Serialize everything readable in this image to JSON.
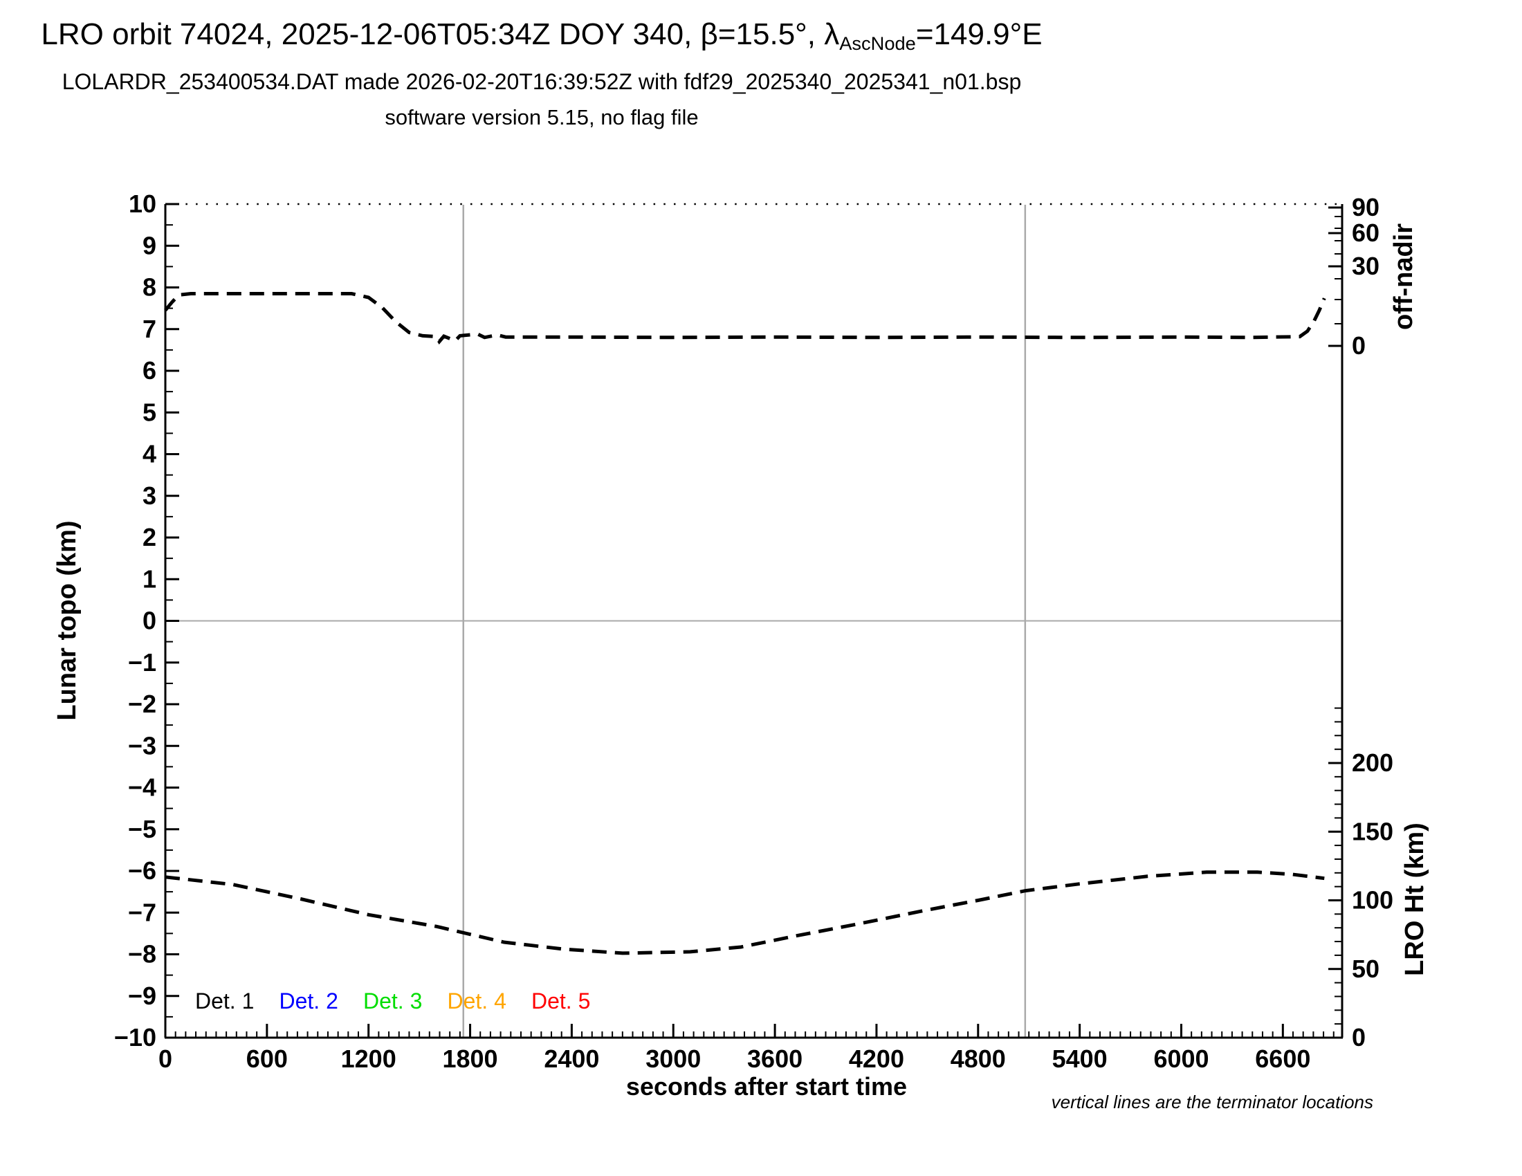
{
  "header": {
    "title_prefix": "LRO orbit 74024, 2025-12-06T05:34Z DOY 340, β=15.5°, λ",
    "title_lambda_subscript": "AscNode",
    "title_suffix": "=149.9°E",
    "subtitle": "LOLARDR_253400534.DAT made 2026-02-20T16:39:52Z with fdf29_2025340_2025341_n01.bsp",
    "version_line": "software version 5.15, no flag file"
  },
  "chart_data": {
    "type": "line",
    "title": "LRO orbit 74024, 2025-12-06T05:34Z DOY 340, β=15.5°, λAscNode=149.9°E",
    "xlabel": "seconds after start time",
    "ylabel_left": "Lunar topo (km)",
    "ylabel_right_top": "off-nadir",
    "ylabel_right_bottom": "LRO Ht (km)",
    "footnote": "vertical lines are the terminator locations",
    "xlim": [
      0,
      6950
    ],
    "ylim_left": [
      -10,
      10
    ],
    "x_major_step": 600,
    "x_minor_step": 60,
    "x_tick_labels": [
      "0",
      "600",
      "1200",
      "1800",
      "2400",
      "3000",
      "3600",
      "4200",
      "4800",
      "5400",
      "6000",
      "6600"
    ],
    "left_tick_labels": [
      "10",
      "9",
      "8",
      "7",
      "6",
      "5",
      "4",
      "3",
      "2",
      "1",
      "0",
      "−1",
      "−2",
      "−3",
      "−4",
      "−5",
      "−6",
      "−7",
      "−8",
      "−9",
      "−10"
    ],
    "left_minor_step": 0.5,
    "off_nadir_scale_note": "nonlinear (sine-like) scale; tick positions given as plot y-pixels",
    "off_nadir_ticks": [
      {
        "label": "90",
        "y": 300
      },
      {
        "label": "60",
        "y": 337
      },
      {
        "label": "30",
        "y": 385
      },
      {
        "label": "0",
        "y": 500
      }
    ],
    "off_nadir_minor_ticks_y": [
      313,
      330,
      348,
      367,
      403,
      433,
      468
    ],
    "ht_ticks": [
      {
        "label": "200",
        "km": 200
      },
      {
        "label": "150",
        "km": 150
      },
      {
        "label": "100",
        "km": 100
      },
      {
        "label": "50",
        "km": 50
      },
      {
        "label": "0",
        "km": 0
      }
    ],
    "ht_minor_step_km": 10,
    "ht_minor_max_km": 250,
    "terminator_lines_t": [
      1760,
      5078
    ],
    "zero_line_value": 0,
    "grid": "off",
    "legend_position": "inside bottom-left",
    "legend": [
      {
        "label": "Det. 1",
        "color": "#000000"
      },
      {
        "label": "Det. 2",
        "color": "#0000ff"
      },
      {
        "label": "Det. 3",
        "color": "#00dd00"
      },
      {
        "label": "Det. 4",
        "color": "#ffa500"
      },
      {
        "label": "Det. 5",
        "color": "#ff0000"
      }
    ],
    "line_color": "#000000",
    "gray_line_color": "#aaaaaa",
    "series": [
      {
        "name": "spacecraft off-nadir angle",
        "style": "dashed",
        "axis": "off-nadir (deg, right top, nonlinear)",
        "points_t_ytopo_deg": [
          [
            0,
            7.45,
            15.5
          ],
          [
            40,
            7.65,
            19.1
          ],
          [
            80,
            7.82,
            22.2
          ],
          [
            150,
            7.85,
            22.8
          ],
          [
            400,
            7.85,
            22.8
          ],
          [
            800,
            7.85,
            22.8
          ],
          [
            1100,
            7.85,
            22.8
          ],
          [
            1200,
            7.76,
            21.1
          ],
          [
            1280,
            7.52,
            16.8
          ],
          [
            1360,
            7.18,
            10.8
          ],
          [
            1440,
            6.92,
            6.4
          ],
          [
            1520,
            6.84,
            5.0
          ],
          [
            1600,
            6.82,
            4.6
          ],
          [
            1618,
            6.7,
            2.6
          ],
          [
            1645,
            6.83,
            4.8
          ],
          [
            1712,
            6.72,
            2.9
          ],
          [
            1740,
            6.84,
            5.0
          ],
          [
            1845,
            6.88,
            5.7
          ],
          [
            1885,
            6.8,
            4.3
          ],
          [
            1960,
            6.86,
            5.3
          ],
          [
            2010,
            6.81,
            4.5
          ],
          [
            2400,
            6.81,
            4.5
          ],
          [
            3000,
            6.8,
            4.3
          ],
          [
            3600,
            6.81,
            4.5
          ],
          [
            4200,
            6.8,
            4.3
          ],
          [
            4800,
            6.81,
            4.5
          ],
          [
            5400,
            6.8,
            4.3
          ],
          [
            6000,
            6.81,
            4.5
          ],
          [
            6400,
            6.8,
            4.3
          ],
          [
            6700,
            6.82,
            4.6
          ],
          [
            6745,
            6.95,
            6.8
          ],
          [
            6785,
            7.2,
            11.2
          ],
          [
            6815,
            7.45,
            15.5
          ],
          [
            6845,
            7.74,
            20.7
          ]
        ]
      },
      {
        "name": "LRO height above surface",
        "style": "dashed",
        "axis": "LRO Ht (km, right bottom)",
        "points_t_km": [
          [
            0,
            117
          ],
          [
            400,
            111.5
          ],
          [
            800,
            101
          ],
          [
            1200,
            89.5
          ],
          [
            1600,
            81
          ],
          [
            2000,
            69.5
          ],
          [
            2350,
            64.5
          ],
          [
            2700,
            61.5
          ],
          [
            3100,
            62.5
          ],
          [
            3400,
            66
          ],
          [
            3720,
            74
          ],
          [
            4100,
            83
          ],
          [
            4500,
            93
          ],
          [
            4800,
            100
          ],
          [
            5080,
            107
          ],
          [
            5400,
            112
          ],
          [
            5800,
            117.5
          ],
          [
            6150,
            120.5
          ],
          [
            6450,
            120.5
          ],
          [
            6650,
            119
          ],
          [
            6845,
            116
          ]
        ]
      }
    ]
  }
}
